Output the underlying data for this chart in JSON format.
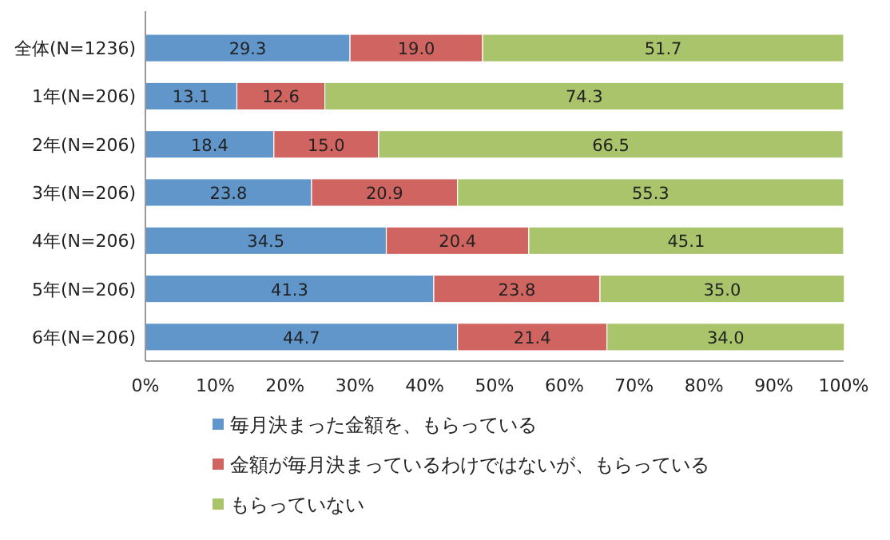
{
  "chart_data": {
    "type": "bar",
    "orientation": "horizontal",
    "stacked": true,
    "legend": "bottom",
    "grid": false,
    "categories": [
      "全体(N=1236)",
      "1年(N=206)",
      "2年(N=206)",
      "3年(N=206)",
      "4年(N=206)",
      "5年(N=206)",
      "6年(N=206)"
    ],
    "xlim": [
      0,
      100
    ],
    "xticks": [
      {
        "value": 0,
        "label": "0%"
      },
      {
        "value": 10,
        "label": "10%"
      },
      {
        "value": 20,
        "label": "20%"
      },
      {
        "value": 30,
        "label": "30%"
      },
      {
        "value": 40,
        "label": "40%"
      },
      {
        "value": 50,
        "label": "50%"
      },
      {
        "value": 60,
        "label": "60%"
      },
      {
        "value": 70,
        "label": "70%"
      },
      {
        "value": 80,
        "label": "80%"
      },
      {
        "value": 90,
        "label": "90%"
      },
      {
        "value": 100,
        "label": "100%"
      }
    ],
    "series": [
      {
        "name": "毎月決まった金額を、もらっている",
        "color": "#6196cb",
        "values": [
          29.3,
          13.1,
          18.4,
          23.8,
          34.5,
          41.3,
          44.7
        ],
        "value_labels": [
          "29.3",
          "13.1",
          "18.4",
          "23.8",
          "34.5",
          "41.3",
          "44.7"
        ]
      },
      {
        "name": "金額が毎月決まっているわけではないが、もらっている",
        "color": "#d06460",
        "values": [
          19.0,
          12.6,
          15.0,
          20.9,
          20.4,
          23.8,
          21.4
        ],
        "value_labels": [
          "19.0",
          "12.6",
          "15.0",
          "20.9",
          "20.4",
          "23.8",
          "21.4"
        ]
      },
      {
        "name": "もらっていない",
        "color": "#aac46c",
        "values": [
          51.7,
          74.3,
          66.5,
          55.3,
          45.1,
          35.0,
          34.0
        ],
        "value_labels": [
          "51.7",
          "74.3",
          "66.5",
          "55.3",
          "45.1",
          "35.0",
          "34.0"
        ]
      }
    ]
  }
}
